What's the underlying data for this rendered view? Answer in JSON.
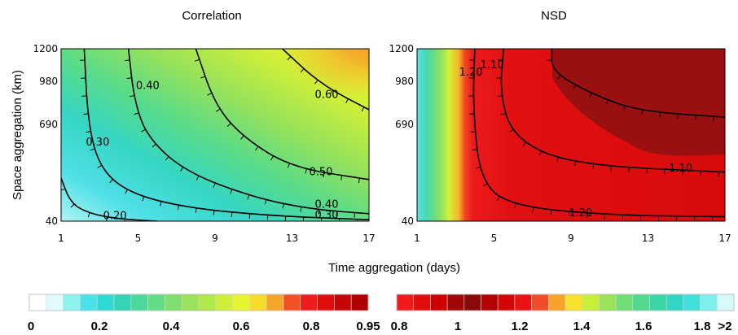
{
  "chart_data": [
    {
      "type": "heatmap",
      "title": "Correlation",
      "xlabel": "Time aggregation (days)",
      "ylabel": "Space aggregation (km)",
      "xlim": [
        1,
        17
      ],
      "ylim": [
        40,
        1200
      ],
      "x_ticks": [
        "1",
        "5",
        "9",
        "13",
        "17"
      ],
      "y_ticks": [
        "40",
        "690",
        "980",
        "1200"
      ],
      "contours": [
        {
          "level": "0.20",
          "points": [
            [
              1,
              330
            ],
            [
              1.5,
              160
            ],
            [
              2.5,
              90
            ],
            [
              4,
              55
            ],
            [
              6,
              40
            ]
          ]
        },
        {
          "level": "0.30",
          "points": [
            [
              2.2,
              1200
            ],
            [
              2.4,
              700
            ],
            [
              3,
              400
            ],
            [
              4.5,
              230
            ],
            [
              7.5,
              130
            ],
            [
              12,
              75
            ],
            [
              17,
              50
            ]
          ]
        },
        {
          "level": "0.40",
          "points": [
            [
              4.5,
              1200
            ],
            [
              4.8,
              850
            ],
            [
              5.5,
              600
            ],
            [
              7.5,
              370
            ],
            [
              11,
              200
            ],
            [
              14,
              120
            ],
            [
              17,
              90
            ]
          ]
        },
        {
          "level": "0.50",
          "points": [
            [
              8,
              1200
            ],
            [
              9,
              820
            ],
            [
              10.5,
              600
            ],
            [
              13,
              400
            ],
            [
              17,
              320
            ]
          ]
        },
        {
          "level": "0.60",
          "points": [
            [
              12.5,
              1200
            ],
            [
              14.5,
              960
            ],
            [
              17,
              790
            ]
          ]
        }
      ],
      "contour_labels": [
        {
          "text": "0.20",
          "x": 3.8,
          "y": 65
        },
        {
          "text": "0.30",
          "x": 2.9,
          "y": 560
        },
        {
          "text": "0.30",
          "x": 14.8,
          "y": 70
        },
        {
          "text": "0.40",
          "x": 5.5,
          "y": 940
        },
        {
          "text": "0.40",
          "x": 14.8,
          "y": 140
        },
        {
          "text": "0.50",
          "x": 14.5,
          "y": 360
        },
        {
          "text": "0.60",
          "x": 14.8,
          "y": 880
        }
      ],
      "colorbar": {
        "tick_labels": [
          "0",
          "0.2",
          "0.4",
          "0.6",
          "0.8",
          "0.95"
        ],
        "colors": [
          "#ffffff",
          "#e0fbfb",
          "#8ef2ef",
          "#48e2e8",
          "#2fd9d4",
          "#35d4b8",
          "#4cd89c",
          "#64dc84",
          "#7edf6e",
          "#98e35a",
          "#b2e94a",
          "#cdef3a",
          "#e7f430",
          "#f6dd2c",
          "#f5a62a",
          "#f35028",
          "#ef1c1c",
          "#e00d0d",
          "#c70505",
          "#b00000"
        ]
      }
    },
    {
      "type": "heatmap",
      "title": "NSD",
      "xlabel": "Time aggregation (days)",
      "xlim": [
        1,
        17
      ],
      "ylim": [
        40,
        1200
      ],
      "x_ticks": [
        "1",
        "5",
        "9",
        "13",
        "17"
      ],
      "y_ticks": [
        "40",
        "690",
        "980",
        "1200"
      ],
      "contours": [
        {
          "level": "1.10",
          "points": [
            [
              8,
              1200
            ],
            [
              8,
              1050
            ],
            [
              10,
              900
            ],
            [
              12.5,
              780
            ],
            [
              17,
              740
            ]
          ]
        },
        {
          "level": "1.10",
          "points": [
            [
              5.5,
              1200
            ],
            [
              5.3,
              900
            ],
            [
              6,
              600
            ],
            [
              9,
              420
            ],
            [
              17,
              370
            ]
          ]
        },
        {
          "level": "1.20",
          "points": [
            [
              4,
              1200
            ],
            [
              3.9,
              800
            ],
            [
              4.3,
              300
            ],
            [
              6,
              140
            ],
            [
              11,
              80
            ],
            [
              17,
              70
            ]
          ]
        }
      ],
      "contour_labels": [
        {
          "text": "1.10",
          "x": 4.9,
          "y": 1080
        },
        {
          "text": "1.10",
          "x": 14.7,
          "y": 385
        },
        {
          "text": "1.20",
          "x": 3.8,
          "y": 1030
        },
        {
          "text": "1.20",
          "x": 9.5,
          "y": 85
        }
      ],
      "colorbar": {
        "tick_labels": [
          "0.8",
          "1",
          "1.2",
          "1.4",
          "1.6",
          "1.8",
          ">2"
        ],
        "colors": [
          "#f01a1a",
          "#e20d0d",
          "#cc0000",
          "#a00808",
          "#8a0a0a",
          "#b50202",
          "#d30505",
          "#e81414",
          "#f24b2a",
          "#f6a32a",
          "#f5e22c",
          "#c8ef3a",
          "#98e35a",
          "#72de76",
          "#52d98f",
          "#3bd6a8",
          "#31d7c4",
          "#42e0dc",
          "#7ff0ee",
          "#d6fafa"
        ]
      }
    }
  ]
}
